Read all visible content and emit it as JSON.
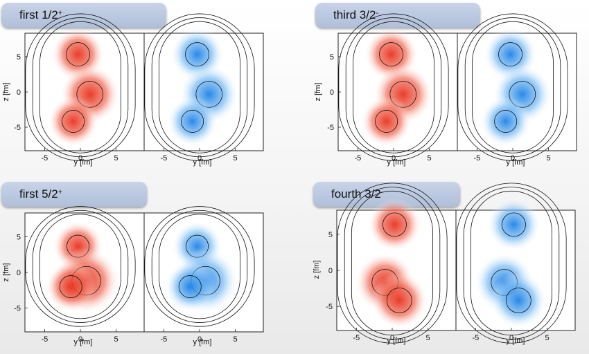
{
  "panels": [
    {
      "label_main": "first 1/2",
      "label_sup": "+",
      "x_label": "y [fm]",
      "y_label": "z [fm]",
      "y_ticks": [
        "5",
        "0",
        "-5"
      ],
      "x_ticks": [
        "-5",
        "0",
        "5"
      ]
    },
    {
      "label_main": "third 3/2",
      "label_sup": "-",
      "x_label": "y [fm]",
      "y_label": "z [fm]",
      "y_ticks": [
        "5",
        "0",
        "-5"
      ],
      "x_ticks": [
        "-5",
        "0",
        "5"
      ]
    },
    {
      "label_main": "first 5/2",
      "label_sup": "+",
      "x_label": "y [fm]",
      "y_label": "z [fm]",
      "y_ticks": [
        "5",
        "0",
        "-5"
      ],
      "x_ticks": [
        "-5",
        "0",
        "5"
      ]
    },
    {
      "label_main": "fourth 3/2",
      "label_sup": "-",
      "x_label": "y [fm]",
      "y_label": "z [fm]",
      "y_ticks": [
        "5",
        "0",
        "-5"
      ],
      "x_ticks": [
        "-5",
        "0",
        "5"
      ]
    }
  ],
  "colors": {
    "left_density": "#e8321e",
    "right_density": "#1e82e6",
    "frame": "#222222",
    "contour": "#111111"
  }
}
